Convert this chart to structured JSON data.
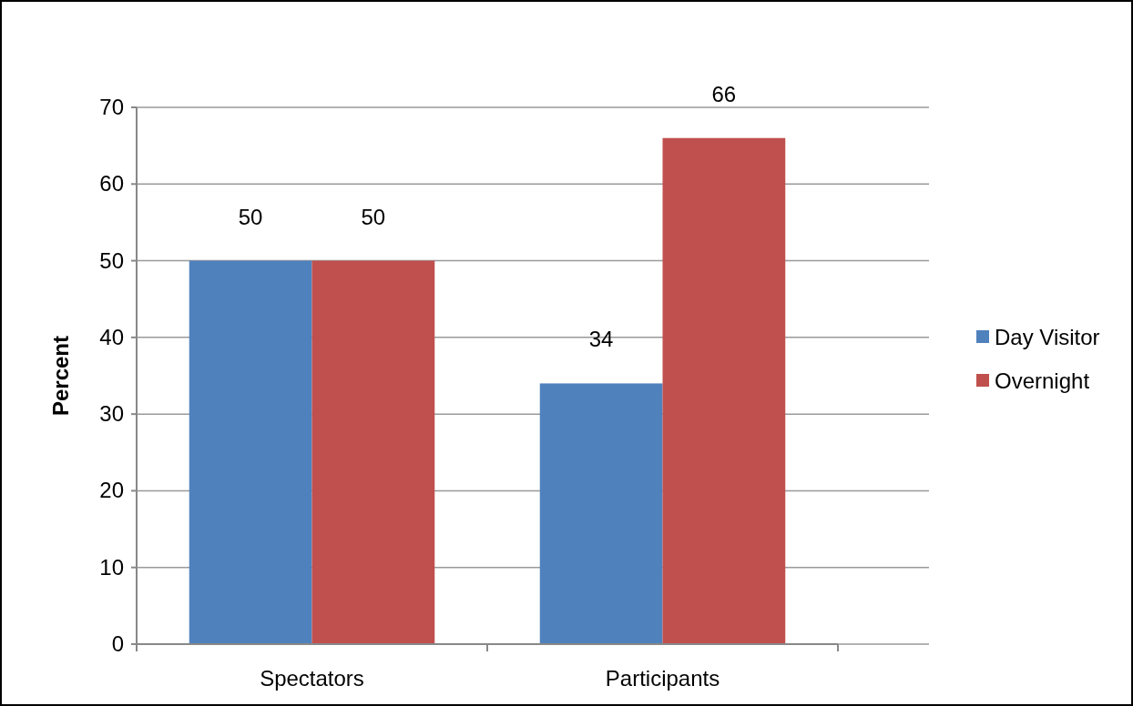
{
  "chart_data": {
    "type": "bar",
    "ylabel": "Percent",
    "categories": [
      "Spectators",
      "Participants"
    ],
    "series": [
      {
        "name": "Day Visitor",
        "color": "#4f81bd",
        "values": [
          50,
          34
        ]
      },
      {
        "name": "Overnight",
        "color": "#c0504d",
        "values": [
          50,
          66
        ]
      }
    ],
    "ylim": [
      0,
      70
    ],
    "yticks": [
      0,
      10,
      20,
      30,
      40,
      50,
      60,
      70
    ],
    "grid": "y",
    "legend": "right",
    "data_labels": true
  }
}
